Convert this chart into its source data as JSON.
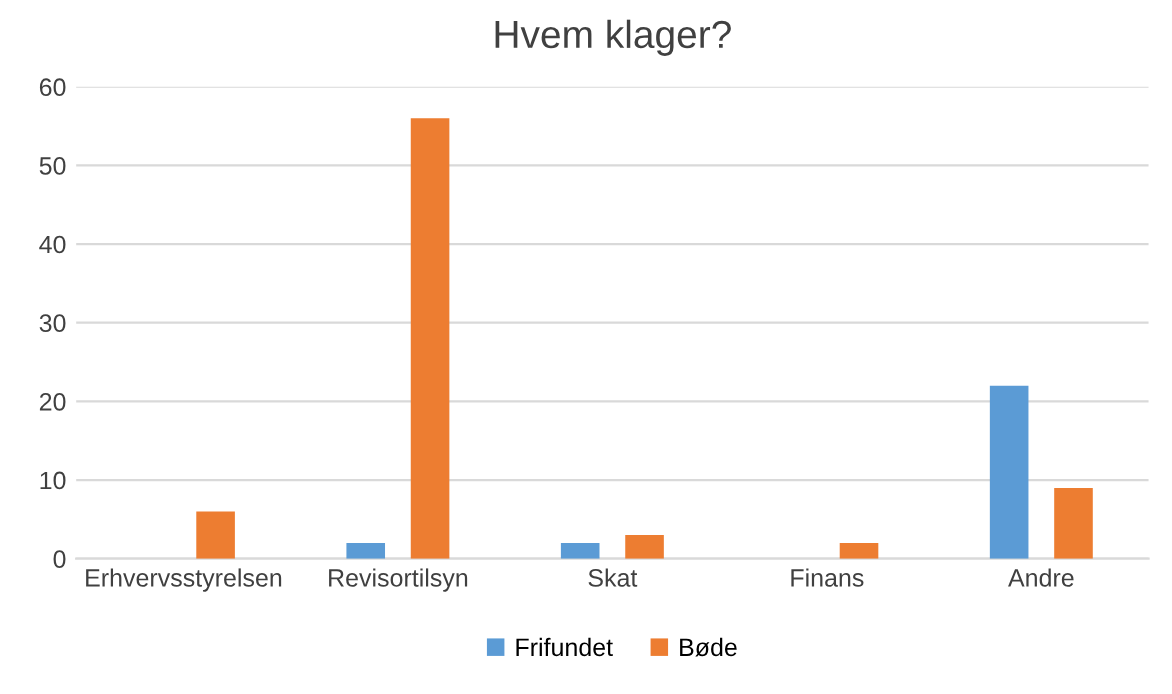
{
  "chart_data": {
    "type": "bar",
    "title": "Hvem klager?",
    "categories": [
      "Erhvervsstyrelsen",
      "Revisortilsyn",
      "Skat",
      "Finans",
      "Andre"
    ],
    "series": [
      {
        "name": "Frifundet",
        "color": "#5b9bd5",
        "values": [
          null,
          2,
          2,
          null,
          22
        ]
      },
      {
        "name": "Bøde",
        "color": "#ed7d31",
        "values": [
          6,
          56,
          3,
          2,
          9
        ]
      }
    ],
    "ylim": [
      0,
      60
    ],
    "yticks": [
      0,
      10,
      20,
      30,
      40,
      50,
      60
    ],
    "grid": "y",
    "legend": "bottom"
  }
}
